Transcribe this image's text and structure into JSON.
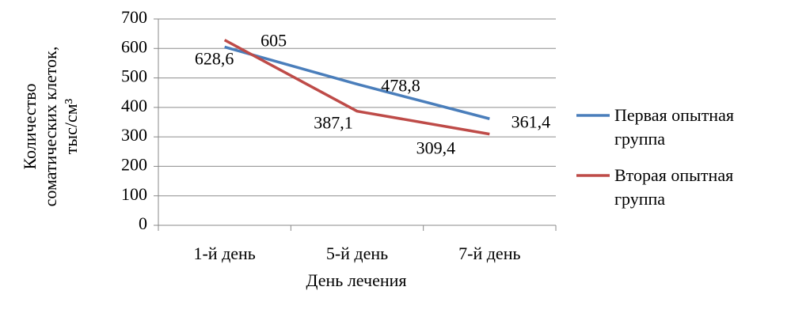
{
  "chart_data": {
    "type": "line",
    "ylabel": [
      "Количество",
      "соматических  клеток,",
      "тыс/см³"
    ],
    "xlabel": "День лечения",
    "categories": [
      "1-й день",
      "5-й день",
      "7-й день"
    ],
    "series": [
      {
        "name": "Первая опытная группа",
        "color": "#4a7ebb",
        "values": [
          605,
          478.8,
          361.4
        ],
        "value_labels": [
          "605",
          "478,8",
          "361,4"
        ]
      },
      {
        "name": "Вторая опытная группа",
        "color": "#be4b48",
        "values": [
          628.6,
          387.1,
          309.4
        ],
        "value_labels": [
          "628,6",
          "387,1",
          "309,4"
        ]
      }
    ],
    "ylim": [
      0,
      700
    ],
    "yticks": [
      0,
      100,
      200,
      300,
      400,
      500,
      600,
      700
    ],
    "grid": true,
    "legend": "right"
  }
}
